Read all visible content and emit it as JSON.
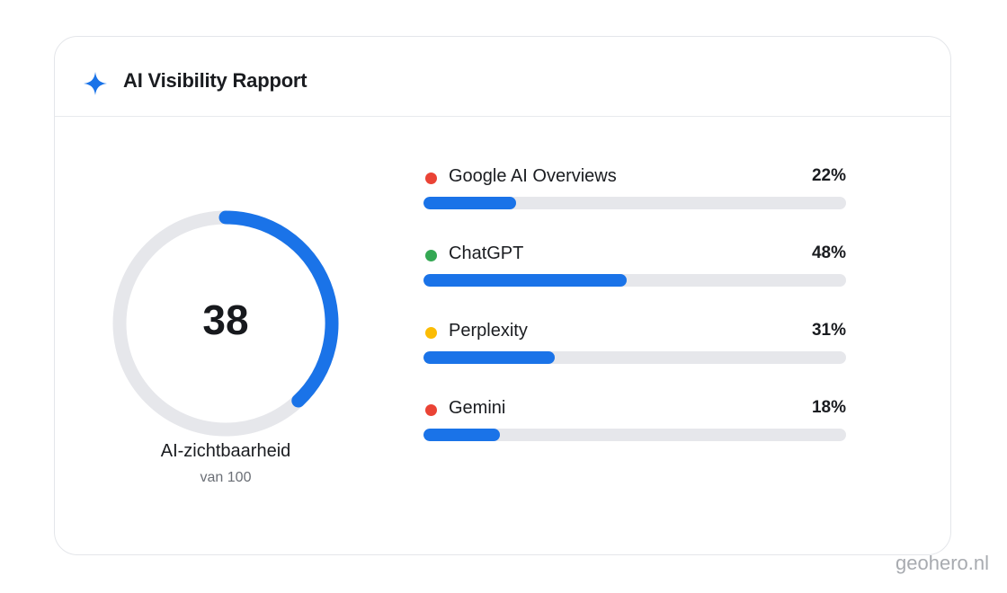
{
  "card": {
    "title": "AI Visibility Rapport",
    "title_icon": "sparkle-icon"
  },
  "score": {
    "value": 38,
    "value_text": "38",
    "max": 100,
    "label": "AI-zichtbaarheid",
    "sublabel": "van 100"
  },
  "platforms": [
    {
      "name": "Google AI Overviews",
      "percent": 22,
      "percent_text": "22%",
      "dot_color": "#ea4335"
    },
    {
      "name": "ChatGPT",
      "percent": 48,
      "percent_text": "48%",
      "dot_color": "#34a853"
    },
    {
      "name": "Perplexity",
      "percent": 31,
      "percent_text": "31%",
      "dot_color": "#fbbc04"
    },
    {
      "name": "Gemini",
      "percent": 18,
      "percent_text": "18%",
      "dot_color": "#ea4335"
    }
  ],
  "colors": {
    "accent": "#1a73e8",
    "track": "#e6e7eb"
  },
  "watermark": "geohero.nl"
}
